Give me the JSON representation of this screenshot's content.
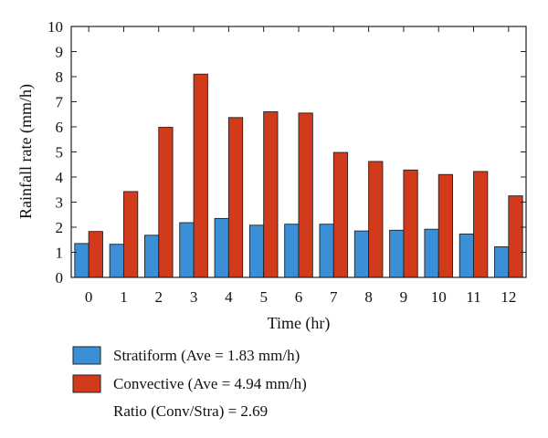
{
  "chart_data": {
    "type": "bar",
    "title": "",
    "xlabel": "Time (hr)",
    "ylabel": "Rainfall rate (mm/h)",
    "ylim": [
      0,
      10
    ],
    "yticks": [
      0,
      1,
      2,
      3,
      4,
      5,
      6,
      7,
      8,
      9,
      10
    ],
    "categories": [
      "0",
      "1",
      "2",
      "3",
      "4",
      "5",
      "6",
      "7",
      "8",
      "9",
      "10",
      "11",
      "12"
    ],
    "grid": false,
    "legend_position": "bottom",
    "series": [
      {
        "name": "Stratiform (Ave = 1.83 mm/h)",
        "color": "#3b8fd6",
        "values": [
          1.35,
          1.32,
          1.68,
          2.18,
          2.35,
          2.08,
          2.12,
          2.12,
          1.85,
          1.88,
          1.92,
          1.73,
          1.22
        ]
      },
      {
        "name": "Convective (Ave = 4.94 mm/h)",
        "color": "#d23a1c",
        "values": [
          1.83,
          3.42,
          5.98,
          8.1,
          6.37,
          6.6,
          6.55,
          4.98,
          4.62,
          4.28,
          4.1,
          4.22,
          3.25
        ]
      }
    ],
    "annotation": "Ratio (Conv/Stra) = 2.69"
  }
}
